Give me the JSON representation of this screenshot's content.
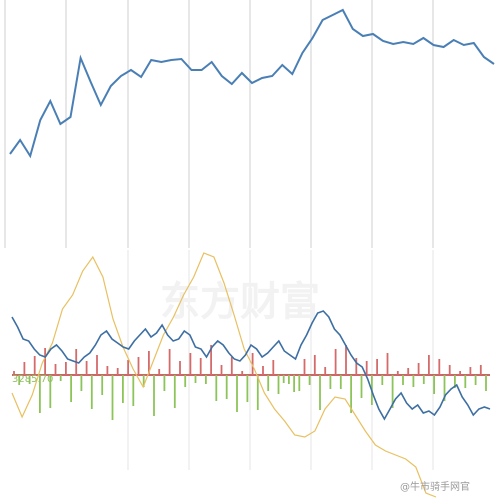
{
  "watermark": "东方财富",
  "credit": "@牛市骑手网官",
  "bottom_value_label": "3285.70",
  "colors": {
    "price_line": "#4a7fb5",
    "grid": "#cfcfcf",
    "indicator_blue": "#3d6fa3",
    "indicator_yellow": "#e8c060",
    "bar_pos": "#d46a6a",
    "bar_neg": "#8dc45a",
    "zero_line": "#cc6666"
  },
  "chart_data": [
    {
      "type": "line",
      "name": "top-price",
      "x": [
        0,
        1,
        2,
        3,
        4,
        5,
        6,
        7,
        8,
        9,
        10,
        11,
        12,
        13,
        14,
        15,
        16,
        17,
        18,
        19,
        20,
        21,
        22,
        23,
        24,
        25,
        26,
        27,
        28,
        29,
        30,
        31,
        32,
        33,
        34,
        35,
        36,
        37,
        38,
        39,
        40,
        41,
        42,
        43,
        44,
        45,
        46,
        47,
        48
      ],
      "y": [
        154,
        140,
        156,
        120,
        101,
        124,
        117,
        58,
        82,
        105,
        86,
        76,
        70,
        77,
        60,
        62,
        60,
        59,
        70,
        70,
        62,
        76,
        84,
        73,
        83,
        78,
        76,
        65,
        74,
        53,
        38,
        20,
        15,
        10,
        29,
        36,
        34,
        41,
        44,
        42,
        44,
        38,
        45,
        47,
        40,
        45,
        43,
        57,
        64
      ],
      "ylim": [
        0,
        248
      ],
      "grid": true
    },
    {
      "type": "bar",
      "name": "histogram",
      "values": [
        4,
        -10,
        13,
        -9,
        19,
        -38,
        27,
        -33,
        11,
        -6,
        13,
        -27,
        26,
        -16,
        14,
        -34,
        20,
        -20,
        9,
        -45,
        7,
        -28,
        15,
        -31,
        18,
        -12,
        24,
        -41,
        6,
        -16,
        26,
        -33,
        14,
        -12,
        22,
        -8,
        17,
        -9,
        30,
        -26,
        10,
        -24,
        18,
        -37,
        4,
        -27,
        22,
        -35,
        9,
        -16,
        15,
        -19,
        -8,
        -9,
        -17,
        -16,
        16,
        -10,
        20,
        -35,
        8,
        -14,
        26,
        -14,
        30,
        -38,
        17,
        -23,
        14,
        -30,
        16,
        -10,
        22,
        -33,
        4,
        -10,
        7,
        -12,
        12,
        -9,
        20,
        -19,
        16,
        -26,
        10,
        -13,
        4,
        -13,
        8,
        -10,
        10,
        -16
      ],
      "zero_level": 0
    },
    {
      "type": "line",
      "name": "indicator-blue",
      "y": [
        58,
        48,
        36,
        34,
        26,
        20,
        18,
        26,
        30,
        24,
        16,
        14,
        12,
        18,
        22,
        30,
        40,
        44,
        36,
        32,
        28,
        26,
        34,
        40,
        46,
        38,
        42,
        50,
        40,
        34,
        36,
        44,
        40,
        28,
        26,
        18,
        28,
        34,
        30,
        22,
        16,
        14,
        20,
        30,
        26,
        18,
        22,
        28,
        34,
        24,
        20,
        16,
        30,
        40,
        52,
        62,
        64,
        58,
        46,
        40,
        30,
        20,
        12,
        8,
        -4,
        -20,
        -34,
        -44,
        -34,
        -24,
        -18,
        -28,
        -34,
        -30,
        -38,
        -36,
        -40,
        -32,
        -20,
        -14,
        -10,
        -22,
        -30,
        -40,
        -34,
        -32,
        -34
      ]
    },
    {
      "type": "line",
      "name": "indicator-yellow",
      "y": [
        -18,
        -42,
        -20,
        12,
        32,
        66,
        80,
        104,
        118,
        98,
        56,
        28,
        6,
        -12,
        14,
        40,
        58,
        80,
        98,
        122,
        118,
        92,
        60,
        26,
        6,
        -18,
        -34,
        -46,
        -60,
        -62,
        -56,
        -34,
        -22,
        -24,
        -40,
        -56,
        -70,
        -76,
        -80,
        -84,
        -92,
        -118,
        -122
      ]
    }
  ]
}
